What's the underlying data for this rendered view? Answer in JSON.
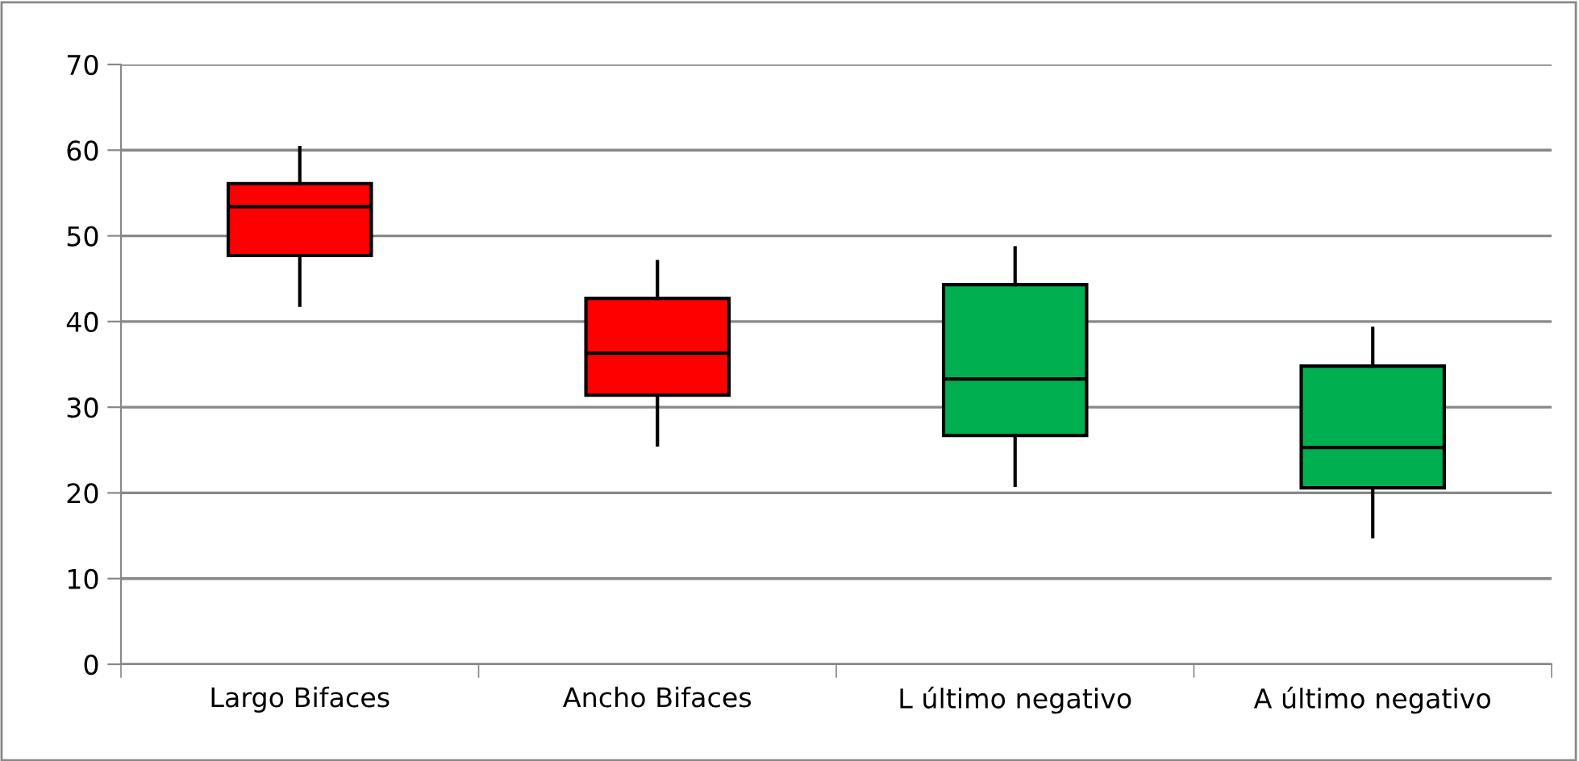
{
  "chart_data": {
    "type": "box",
    "categories": [
      "Largo Bifaces",
      "Ancho Bifaces",
      "L último negativo",
      "A último negativo"
    ],
    "boxes": [
      {
        "low": 41.9,
        "q1": 47.7,
        "median": 53.4,
        "q3": 56.1,
        "high": 60.3
      },
      {
        "low": 25.6,
        "q1": 31.4,
        "median": 36.3,
        "q3": 42.7,
        "high": 47.0
      },
      {
        "low": 20.9,
        "q1": 26.7,
        "median": 33.3,
        "q3": 44.3,
        "high": 48.6
      },
      {
        "low": 14.9,
        "q1": 20.6,
        "median": 25.3,
        "q3": 34.8,
        "high": 39.2
      }
    ],
    "colors": [
      "#ff0000",
      "#ff0000",
      "#00b050",
      "#00b050"
    ],
    "ylim": [
      0,
      70
    ],
    "yticks": [
      0,
      10,
      20,
      30,
      40,
      50,
      60,
      70
    ],
    "grid": "y"
  }
}
